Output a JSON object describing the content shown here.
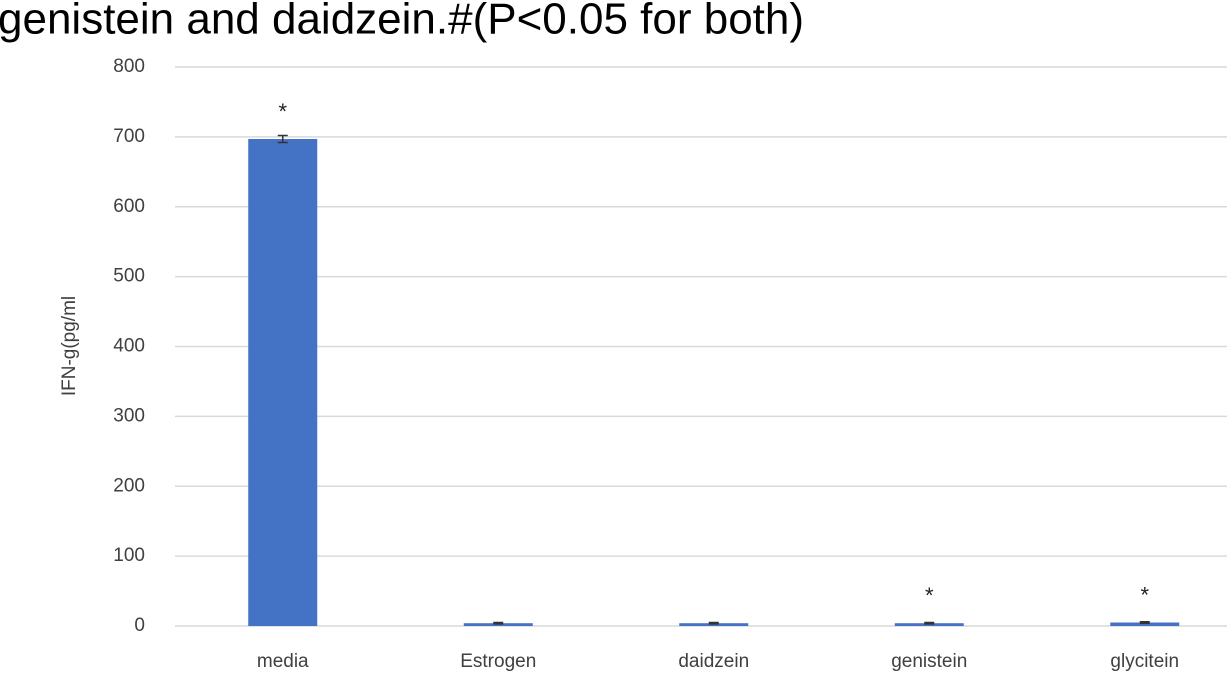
{
  "chart_data": {
    "type": "bar",
    "title": "genistein and daidzein.#(P<0.05 for both)",
    "y_label": "IFN-g(pg/ml",
    "categories": [
      "media",
      "Estrogen",
      "daidzein",
      "genistein",
      "glycitein"
    ],
    "values": [
      697,
      4,
      4,
      4,
      5
    ],
    "errors": [
      5,
      1,
      1,
      1,
      1
    ],
    "annotations": [
      "*",
      null,
      null,
      "*",
      "*"
    ],
    "color": "#4472c4",
    "ylim": [
      0,
      800
    ],
    "yticks": [
      0,
      100,
      200,
      300,
      400,
      500,
      600,
      700,
      800
    ],
    "grid": true
  }
}
